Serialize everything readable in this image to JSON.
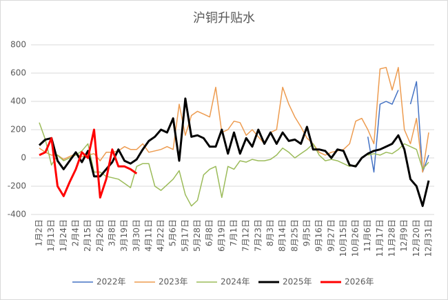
{
  "chart_data": {
    "type": "line",
    "title": "沪铜升贴水",
    "categories": [
      "1月2日",
      null,
      "1月13日",
      null,
      "1月24日",
      null,
      "2月4日",
      null,
      "2月15日",
      null,
      "2月26日",
      null,
      "3月8日",
      null,
      "3月19日",
      null,
      "3月30日",
      null,
      "4月11日",
      null,
      "4月22日",
      null,
      "5月6日",
      null,
      "5月17日",
      null,
      "5月28日",
      null,
      "6月8日",
      null,
      "6月19日",
      null,
      "7月1日",
      null,
      "7月12日",
      null,
      "7月23日",
      null,
      "8月3日",
      null,
      "8月14日",
      null,
      "8月25日",
      null,
      "9月5日",
      null,
      "9月16日",
      null,
      "9月27日",
      null,
      "10月15日",
      null,
      "10月26日",
      null,
      "11月6日",
      null,
      "11月17日",
      null,
      "11月28日",
      null,
      "12月9日",
      null,
      "12月20日",
      null,
      "12月31日"
    ],
    "ylim": [
      -400,
      800
    ],
    "yticks": [
      -400,
      -200,
      0,
      200,
      400,
      600,
      800
    ],
    "grid": true,
    "legend": "bottom",
    "series": [
      {
        "name": "2022年",
        "color": "#4472c4",
        "width": 1.5,
        "values": [
          null,
          null,
          null,
          null,
          null,
          null,
          null,
          null,
          null,
          null,
          null,
          null,
          null,
          null,
          null,
          null,
          null,
          null,
          null,
          null,
          null,
          null,
          null,
          null,
          null,
          null,
          null,
          null,
          null,
          null,
          null,
          null,
          null,
          null,
          null,
          null,
          null,
          null,
          null,
          null,
          null,
          null,
          null,
          null,
          null,
          null,
          null,
          null,
          null,
          null,
          null,
          null,
          null,
          null,
          150,
          -100,
          380,
          400,
          380,
          480,
          null,
          380,
          540,
          -100,
          20
        ]
      },
      {
        "name": "2023年",
        "color": "#ed9b4f",
        "width": 1.5,
        "values": [
          70,
          40,
          20,
          20,
          -10,
          10,
          30,
          10,
          20,
          30,
          -20,
          40,
          40,
          50,
          80,
          60,
          60,
          100,
          40,
          50,
          60,
          80,
          60,
          380,
          160,
          300,
          330,
          310,
          290,
          500,
          180,
          200,
          260,
          250,
          160,
          200,
          150,
          100,
          180,
          200,
          500,
          380,
          290,
          220,
          140,
          100,
          40,
          20,
          40,
          50,
          60,
          100,
          260,
          280,
          200,
          100,
          630,
          640,
          480,
          640,
          200,
          100,
          280,
          -100,
          180
        ]
      },
      {
        "name": "2024年",
        "color": "#9bbb59",
        "width": 1.5,
        "values": [
          250,
          130,
          -50,
          20,
          -20,
          0,
          20,
          50,
          100,
          -100,
          -100,
          -130,
          -140,
          -150,
          -180,
          -210,
          -60,
          -40,
          -40,
          -200,
          -230,
          -190,
          -150,
          -90,
          -260,
          -340,
          -300,
          -120,
          -80,
          -60,
          -280,
          -60,
          -80,
          -20,
          -30,
          -10,
          -20,
          -20,
          -10,
          20,
          70,
          40,
          0,
          30,
          60,
          100,
          20,
          -20,
          -10,
          -20,
          -40,
          -60,
          -50,
          null,
          20,
          30,
          20,
          40,
          30,
          60,
          100,
          80,
          60,
          -80,
          -30
        ]
      },
      {
        "name": "2025年",
        "color": "#000000",
        "width": 3,
        "values": [
          90,
          130,
          140,
          -20,
          -80,
          -20,
          40,
          -30,
          50,
          -130,
          -130,
          -80,
          -30,
          60,
          -20,
          -40,
          -10,
          60,
          120,
          150,
          200,
          180,
          280,
          -20,
          420,
          150,
          160,
          140,
          80,
          80,
          200,
          30,
          180,
          30,
          140,
          80,
          200,
          100,
          180,
          100,
          180,
          120,
          130,
          100,
          220,
          60,
          60,
          50,
          0,
          60,
          50,
          -50,
          -60,
          0,
          30,
          50,
          60,
          80,
          100,
          160,
          60,
          -150,
          -200,
          -340,
          -160
        ]
      },
      {
        "name": "2026年",
        "color": "#ff0000",
        "width": 3,
        "values": [
          20,
          40,
          140,
          -200,
          -270,
          -170,
          -80,
          40,
          0,
          200,
          -280,
          -150,
          60,
          -60,
          -60,
          -80,
          -110,
          null,
          null,
          null,
          null,
          null,
          null,
          null,
          null,
          null,
          null,
          null,
          null,
          null,
          null,
          null,
          null,
          null,
          null,
          null,
          null,
          null,
          null,
          null,
          null,
          null,
          null,
          null,
          null,
          null,
          null,
          null,
          null,
          null,
          null,
          null,
          null,
          null,
          null,
          null,
          null,
          null,
          null,
          null,
          null,
          null,
          null,
          null,
          null
        ]
      }
    ]
  }
}
